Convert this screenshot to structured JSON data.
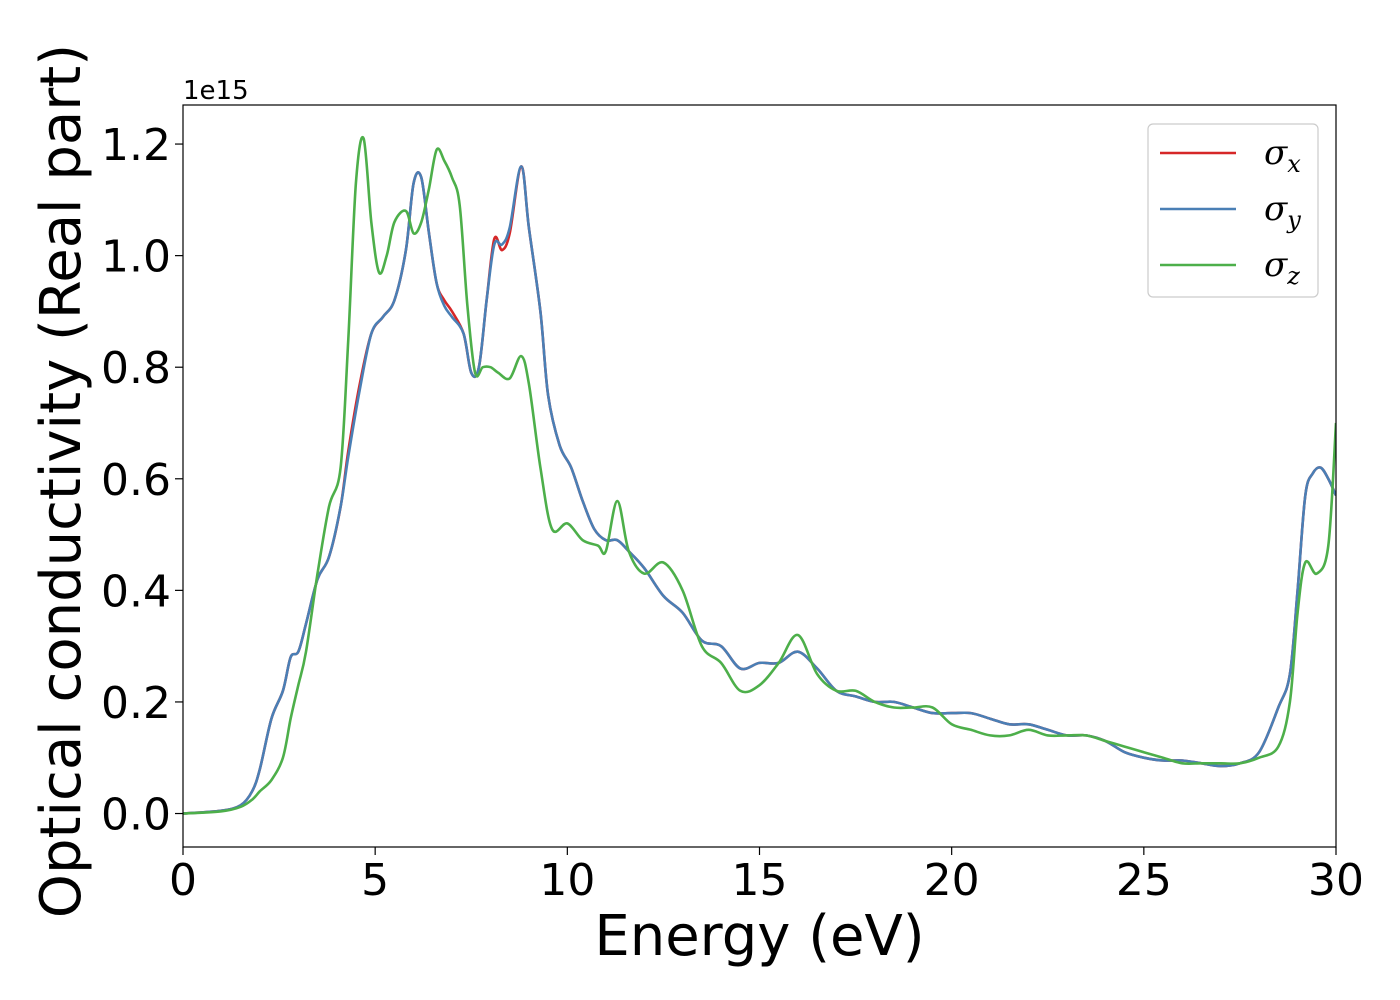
{
  "chart_data": {
    "type": "line",
    "xlabel": "Energy (eV)",
    "ylabel": "Optical conductivity (Real part)",
    "y_offset_text": "1e15",
    "xlim": [
      0,
      30
    ],
    "ylim": [
      -0.06,
      1.27
    ],
    "x_ticks": [
      0,
      5,
      10,
      15,
      20,
      25,
      30
    ],
    "x_tick_labels": [
      "0",
      "5",
      "10",
      "15",
      "20",
      "25",
      "30"
    ],
    "y_ticks": [
      0.0,
      0.2,
      0.4,
      0.6,
      0.8,
      1.0,
      1.2
    ],
    "y_tick_labels": [
      "0.0",
      "0.2",
      "0.4",
      "0.6",
      "0.8",
      "1.0",
      "1.2"
    ],
    "grid": false,
    "legend_placement": "top-right",
    "series": [
      {
        "name": "σx",
        "legend_symbol": "σ",
        "legend_subscript": "x",
        "color": "#d62728",
        "x": [
          0,
          1.0,
          1.5,
          1.8,
          2.0,
          2.3,
          2.6,
          2.8,
          3.0,
          3.2,
          3.5,
          3.8,
          4.1,
          4.3,
          4.6,
          4.9,
          5.2,
          5.5,
          5.8,
          6.0,
          6.2,
          6.4,
          6.6,
          6.8,
          7.0,
          7.3,
          7.5,
          7.7,
          7.9,
          8.1,
          8.3,
          8.5,
          8.8,
          9.0,
          9.3,
          9.5,
          9.8,
          10.1,
          10.4,
          10.7,
          11.0,
          11.3,
          11.6,
          12.0,
          12.5,
          13.0,
          13.5,
          14.0,
          14.5,
          15.0,
          15.5,
          16.0,
          16.5,
          17.0,
          17.5,
          18.0,
          18.5,
          19.0,
          19.5,
          20.0,
          20.5,
          21.0,
          21.5,
          22.0,
          22.5,
          23.0,
          23.5,
          24.0,
          24.5,
          25.0,
          25.5,
          26.0,
          26.5,
          27.0,
          27.5,
          28.0,
          28.5,
          28.8,
          29.0,
          29.2,
          29.4,
          29.6,
          29.8,
          30.0
        ],
        "y": [
          0,
          0.005,
          0.015,
          0.04,
          0.08,
          0.17,
          0.22,
          0.28,
          0.29,
          0.34,
          0.42,
          0.46,
          0.55,
          0.65,
          0.77,
          0.86,
          0.89,
          0.92,
          1.01,
          1.13,
          1.14,
          1.04,
          0.95,
          0.92,
          0.9,
          0.86,
          0.79,
          0.8,
          0.92,
          1.03,
          1.01,
          1.04,
          1.16,
          1.05,
          0.9,
          0.75,
          0.66,
          0.62,
          0.56,
          0.51,
          0.49,
          0.49,
          0.47,
          0.44,
          0.39,
          0.36,
          0.31,
          0.3,
          0.26,
          0.27,
          0.27,
          0.29,
          0.26,
          0.22,
          0.21,
          0.2,
          0.2,
          0.19,
          0.18,
          0.18,
          0.18,
          0.17,
          0.16,
          0.16,
          0.15,
          0.14,
          0.14,
          0.13,
          0.11,
          0.1,
          0.095,
          0.095,
          0.09,
          0.085,
          0.09,
          0.11,
          0.19,
          0.25,
          0.4,
          0.57,
          0.61,
          0.62,
          0.6,
          0.57
        ]
      },
      {
        "name": "σy",
        "legend_symbol": "σ",
        "legend_subscript": "y",
        "color": "#4a7fb5",
        "x": [
          0,
          1.0,
          1.5,
          1.8,
          2.0,
          2.3,
          2.6,
          2.8,
          3.0,
          3.2,
          3.5,
          3.8,
          4.1,
          4.3,
          4.6,
          4.9,
          5.2,
          5.5,
          5.8,
          6.0,
          6.2,
          6.4,
          6.6,
          6.8,
          7.0,
          7.3,
          7.5,
          7.7,
          7.9,
          8.1,
          8.3,
          8.5,
          8.8,
          9.0,
          9.3,
          9.5,
          9.8,
          10.1,
          10.4,
          10.7,
          11.0,
          11.3,
          11.6,
          12.0,
          12.5,
          13.0,
          13.5,
          14.0,
          14.5,
          15.0,
          15.5,
          16.0,
          16.5,
          17.0,
          17.5,
          18.0,
          18.5,
          19.0,
          19.5,
          20.0,
          20.5,
          21.0,
          21.5,
          22.0,
          22.5,
          23.0,
          23.5,
          24.0,
          24.5,
          25.0,
          25.5,
          26.0,
          26.5,
          27.0,
          27.5,
          28.0,
          28.5,
          28.8,
          29.0,
          29.2,
          29.4,
          29.6,
          29.8,
          30.0
        ],
        "y": [
          0,
          0.005,
          0.015,
          0.04,
          0.08,
          0.17,
          0.22,
          0.28,
          0.29,
          0.34,
          0.42,
          0.46,
          0.55,
          0.64,
          0.76,
          0.86,
          0.89,
          0.92,
          1.01,
          1.13,
          1.14,
          1.04,
          0.95,
          0.91,
          0.89,
          0.86,
          0.79,
          0.8,
          0.92,
          1.02,
          1.02,
          1.05,
          1.16,
          1.05,
          0.9,
          0.75,
          0.66,
          0.62,
          0.56,
          0.51,
          0.49,
          0.49,
          0.47,
          0.44,
          0.39,
          0.36,
          0.31,
          0.3,
          0.26,
          0.27,
          0.27,
          0.29,
          0.26,
          0.22,
          0.21,
          0.2,
          0.2,
          0.19,
          0.18,
          0.18,
          0.18,
          0.17,
          0.16,
          0.16,
          0.15,
          0.14,
          0.14,
          0.13,
          0.11,
          0.1,
          0.095,
          0.095,
          0.09,
          0.085,
          0.09,
          0.11,
          0.19,
          0.25,
          0.4,
          0.57,
          0.61,
          0.62,
          0.6,
          0.57
        ]
      },
      {
        "name": "σz",
        "legend_symbol": "σ",
        "legend_subscript": "z",
        "color": "#4daf4a",
        "x": [
          0,
          1.0,
          1.5,
          1.8,
          2.0,
          2.3,
          2.6,
          2.8,
          3.0,
          3.2,
          3.5,
          3.8,
          4.1,
          4.3,
          4.5,
          4.7,
          4.9,
          5.1,
          5.3,
          5.5,
          5.8,
          6.0,
          6.2,
          6.4,
          6.6,
          6.8,
          7.0,
          7.2,
          7.4,
          7.6,
          7.8,
          8.0,
          8.2,
          8.5,
          8.8,
          9.0,
          9.3,
          9.6,
          10.0,
          10.4,
          10.8,
          11.0,
          11.3,
          11.6,
          12.0,
          12.5,
          13.0,
          13.5,
          14.0,
          14.5,
          15.0,
          15.5,
          16.0,
          16.5,
          17.0,
          17.5,
          18.0,
          18.5,
          19.0,
          19.5,
          20.0,
          20.5,
          21.0,
          21.5,
          22.0,
          22.5,
          23.0,
          23.5,
          24.0,
          24.5,
          25.0,
          25.5,
          26.0,
          26.5,
          27.0,
          27.5,
          28.0,
          28.5,
          28.8,
          29.0,
          29.2,
          29.5,
          29.8,
          30.0
        ],
        "y": [
          0,
          0.004,
          0.012,
          0.025,
          0.04,
          0.06,
          0.1,
          0.17,
          0.23,
          0.29,
          0.43,
          0.55,
          0.62,
          0.85,
          1.13,
          1.21,
          1.06,
          0.97,
          1.0,
          1.06,
          1.08,
          1.04,
          1.06,
          1.12,
          1.19,
          1.17,
          1.14,
          1.09,
          0.91,
          0.79,
          0.8,
          0.8,
          0.79,
          0.78,
          0.82,
          0.77,
          0.62,
          0.51,
          0.52,
          0.49,
          0.48,
          0.47,
          0.56,
          0.47,
          0.43,
          0.45,
          0.4,
          0.3,
          0.27,
          0.22,
          0.23,
          0.27,
          0.32,
          0.25,
          0.22,
          0.22,
          0.2,
          0.19,
          0.19,
          0.19,
          0.16,
          0.15,
          0.14,
          0.14,
          0.15,
          0.14,
          0.14,
          0.14,
          0.13,
          0.12,
          0.11,
          0.1,
          0.09,
          0.09,
          0.09,
          0.09,
          0.1,
          0.12,
          0.2,
          0.36,
          0.45,
          0.43,
          0.48,
          0.7
        ]
      }
    ]
  }
}
